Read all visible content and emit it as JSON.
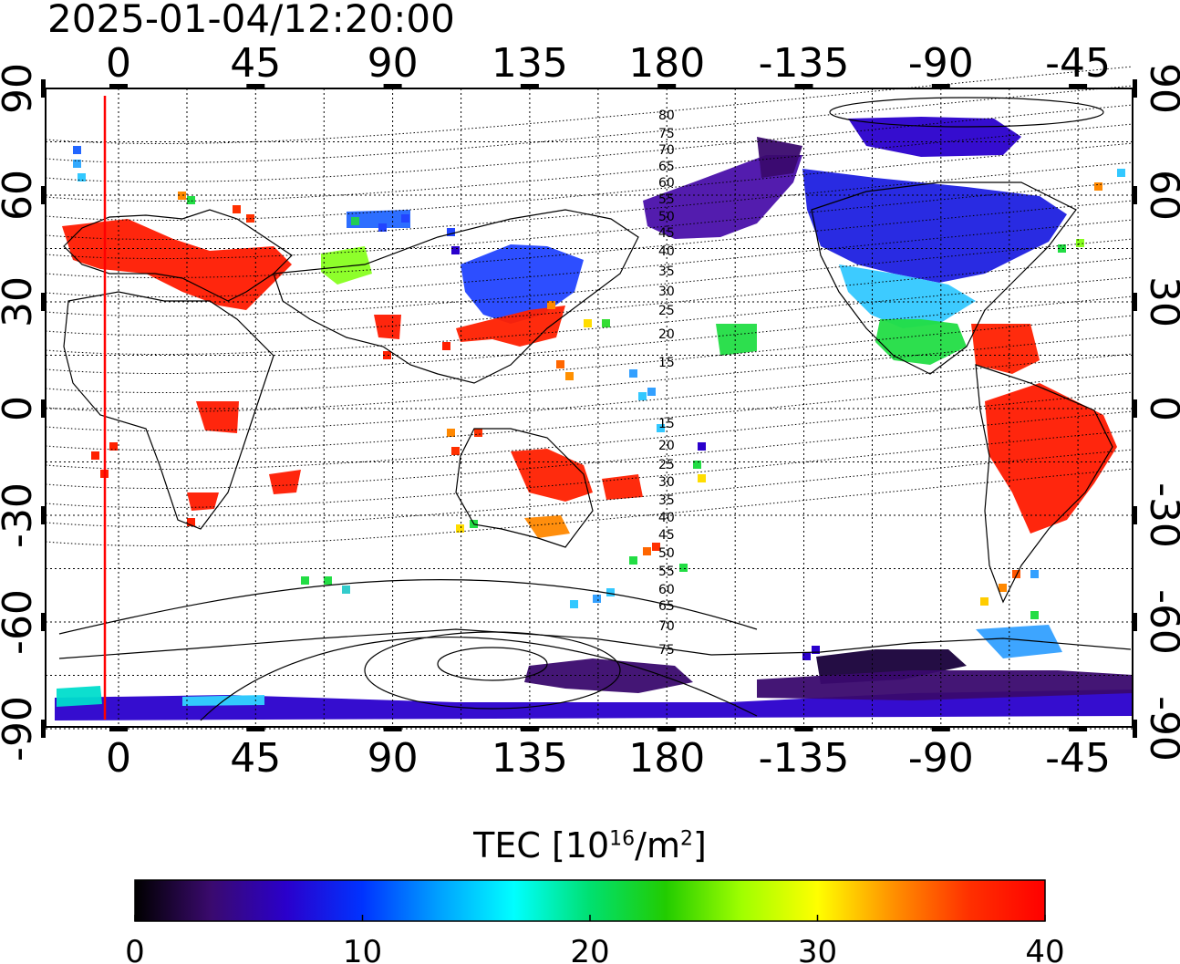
{
  "map": {
    "timestamp": "2025-01-04/12:20:00",
    "top_lon_labels": [
      "0",
      "45",
      "90",
      "135",
      "180",
      "-135",
      "-90",
      "-45"
    ],
    "bottom_lon_labels": [
      "0",
      "45",
      "90",
      "135",
      "180",
      "-135",
      "-90",
      "-45"
    ],
    "left_lat_labels": [
      "90",
      "60",
      "30",
      "0",
      "-30",
      "-60",
      "-90"
    ],
    "right_lat_labels": [
      "90",
      "60",
      "30",
      "0",
      "-30",
      "-60",
      "-90"
    ],
    "contour_labels": [
      "80",
      "75",
      "70",
      "65",
      "60",
      "55",
      "50",
      "45",
      "40",
      "35",
      "30",
      "25",
      "20",
      "15",
      "15",
      "20",
      "25",
      "30",
      "35",
      "40",
      "45",
      "50",
      "55",
      "60",
      "65",
      "70",
      "75"
    ],
    "marker_line_color": "#ff0000"
  },
  "colorbar": {
    "title_main": "TEC  [10",
    "title_exp1": "16",
    "title_mid": "/m",
    "title_exp2": "2",
    "title_end": "]",
    "ticks": [
      "0",
      "10",
      "20",
      "30",
      "40"
    ],
    "stops": [
      "#000000",
      "#3a0a6e",
      "#2a00cc",
      "#0033ff",
      "#00a0ff",
      "#00ffff",
      "#00e070",
      "#22cc00",
      "#a0ff00",
      "#ffff00",
      "#ff9000",
      "#ff3000",
      "#ff0000"
    ]
  }
}
